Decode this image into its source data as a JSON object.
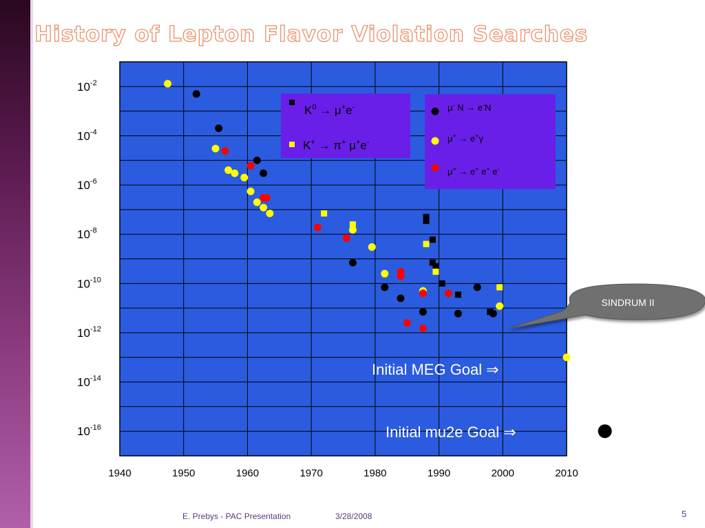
{
  "slide": {
    "title": "History of Lepton Flavor Violation Searches",
    "footer_author": "E. Prebys - PAC Presentation",
    "footer_date": "3/28/2008",
    "page_number": "5"
  },
  "colors": {
    "plot_bg": "#2b5ce0",
    "legend_bg": "#6a1fe8",
    "black_series": "#000000",
    "yellow_series": "#ffff00",
    "red_series": "#ff0000",
    "callout": "#707070"
  },
  "chart_data": {
    "type": "scatter",
    "title": "",
    "xlabel": "",
    "ylabel": "",
    "xlim": [
      1940,
      2010
    ],
    "ylim_log10": [
      -17,
      -1
    ],
    "y_scale": "log",
    "grid": true,
    "x_ticks": [
      "1940",
      "1950",
      "1960",
      "1970",
      "1980",
      "1990",
      "2000",
      "2010"
    ],
    "y_ticks": [
      {
        "base": "10",
        "exp": "-2",
        "log": -2
      },
      {
        "base": "10",
        "exp": "-4",
        "log": -4
      },
      {
        "base": "10",
        "exp": "-6",
        "log": -6
      },
      {
        "base": "10",
        "exp": "-8",
        "log": -8
      },
      {
        "base": "10",
        "exp": "-10",
        "log": -10
      },
      {
        "base": "10",
        "exp": "-12",
        "log": -12
      },
      {
        "base": "10",
        "exp": "-14",
        "log": -14
      },
      {
        "base": "10",
        "exp": "-16",
        "log": -16
      }
    ],
    "series": [
      {
        "name": "μ⁻ N → e⁻N",
        "marker": "circle",
        "color": "#000000",
        "points": [
          {
            "x": 1952,
            "y": 0.005
          },
          {
            "x": 1955.5,
            "y": 0.0002
          },
          {
            "x": 1961.5,
            "y": 1e-05
          },
          {
            "x": 1962.5,
            "y": 3e-06
          },
          {
            "x": 1976.5,
            "y": 7e-10
          },
          {
            "x": 1981.5,
            "y": 7e-11
          },
          {
            "x": 1984,
            "y": 2.5e-11
          },
          {
            "x": 1987.5,
            "y": 7e-12
          },
          {
            "x": 1993,
            "y": 6e-12
          },
          {
            "x": 1996,
            "y": 7e-11
          },
          {
            "x": 1998.5,
            "y": 6e-12
          }
        ]
      },
      {
        "name": "μ⁺ → e⁺γ",
        "marker": "circle",
        "color": "#ffff00",
        "points": [
          {
            "x": 1947.5,
            "y": 0.013
          },
          {
            "x": 1955,
            "y": 3e-05
          },
          {
            "x": 1957,
            "y": 4e-06
          },
          {
            "x": 1958,
            "y": 3e-06
          },
          {
            "x": 1959.5,
            "y": 2e-06
          },
          {
            "x": 1960.5,
            "y": 5.5e-07
          },
          {
            "x": 1961.5,
            "y": 2e-07
          },
          {
            "x": 1962.5,
            "y": 1.2e-07
          },
          {
            "x": 1963.5,
            "y": 7e-08
          },
          {
            "x": 1976.5,
            "y": 1.5e-08
          },
          {
            "x": 1979.5,
            "y": 3e-09
          },
          {
            "x": 1981.5,
            "y": 2.5e-10
          },
          {
            "x": 1987.5,
            "y": 5e-11
          },
          {
            "x": 1999.5,
            "y": 1.2e-11
          }
        ]
      },
      {
        "name": "μ⁺ → e⁺ e⁺ e⁻",
        "marker": "circle",
        "color": "#ff0000",
        "points": [
          {
            "x": 1956.5,
            "y": 2.4e-05
          },
          {
            "x": 1960.5,
            "y": 6e-06
          },
          {
            "x": 1962.5,
            "y": 3e-07
          },
          {
            "x": 1963,
            "y": 3e-07
          },
          {
            "x": 1971,
            "y": 1.9e-08
          },
          {
            "x": 1975.5,
            "y": 7e-09
          },
          {
            "x": 1984,
            "y": 3e-10
          },
          {
            "x": 1984,
            "y": 2e-10
          },
          {
            "x": 1985,
            "y": 2.5e-12
          },
          {
            "x": 1987.5,
            "y": 4e-11
          },
          {
            "x": 1987.5,
            "y": 1.5e-12
          },
          {
            "x": 1991.5,
            "y": 4e-11
          }
        ]
      },
      {
        "name": "K⁰ → μ⁺e⁻",
        "marker": "square",
        "color": "#000000",
        "points": [
          {
            "x": 1988,
            "y": 5e-08
          },
          {
            "x": 1988,
            "y": 3.5e-08
          },
          {
            "x": 1989,
            "y": 6e-09
          },
          {
            "x": 1989,
            "y": 7e-10
          },
          {
            "x": 1989.5,
            "y": 5e-10
          },
          {
            "x": 1990.5,
            "y": 1e-10
          },
          {
            "x": 1993,
            "y": 3.5e-11
          },
          {
            "x": 1998,
            "y": 7e-12
          }
        ]
      },
      {
        "name": "K⁺ → π⁺ μ⁺e⁻",
        "marker": "square",
        "color": "#ffff00",
        "points": [
          {
            "x": 1972,
            "y": 7e-08
          },
          {
            "x": 1976.5,
            "y": 2.5e-08
          },
          {
            "x": 1988,
            "y": 4e-09
          },
          {
            "x": 1989.5,
            "y": 3e-10
          },
          {
            "x": 1999.5,
            "y": 7e-11
          }
        ]
      }
    ],
    "legend": {
      "placement": "top-center and top-right",
      "box_k": {
        "k0_label": "K",
        "k0_sup": "0",
        "k0_rest": " → μ",
        "k0_sup2": "+",
        "k0_e": "e",
        "k0_sup3": "-",
        "kp_label": "K",
        "kp_sup": "+",
        "kp_rest": " → π",
        "kp_sup2": "+",
        "kp_mu": " μ",
        "kp_sup3": "+",
        "kp_e": "e",
        "kp_sup4": "-"
      },
      "box_mu": {
        "row1": {
          "mu": "μ",
          "s1": "-",
          "mid": " N → e",
          "s2": "-",
          "end": "N"
        },
        "row2": {
          "mu": "μ",
          "s1": "+",
          "mid": " → e",
          "s2": "+",
          "end": "γ"
        },
        "row3": {
          "mu": "μ",
          "s1": "+",
          "mid": " → e",
          "s2": "+",
          "mid2": " e",
          "s3": "+",
          "mid3": " e",
          "s4": "-"
        }
      }
    },
    "annotations": {
      "sindrum": "SINDRUM II",
      "meg_goal": {
        "label": "Initial MEG Goal",
        "arrow": "⇒",
        "x": 2010,
        "y": 1e-13
      },
      "mu2e_goal": {
        "label": "Initial mu2e Goal",
        "arrow": "⇒",
        "x": 2016,
        "y": 1e-16
      }
    }
  }
}
